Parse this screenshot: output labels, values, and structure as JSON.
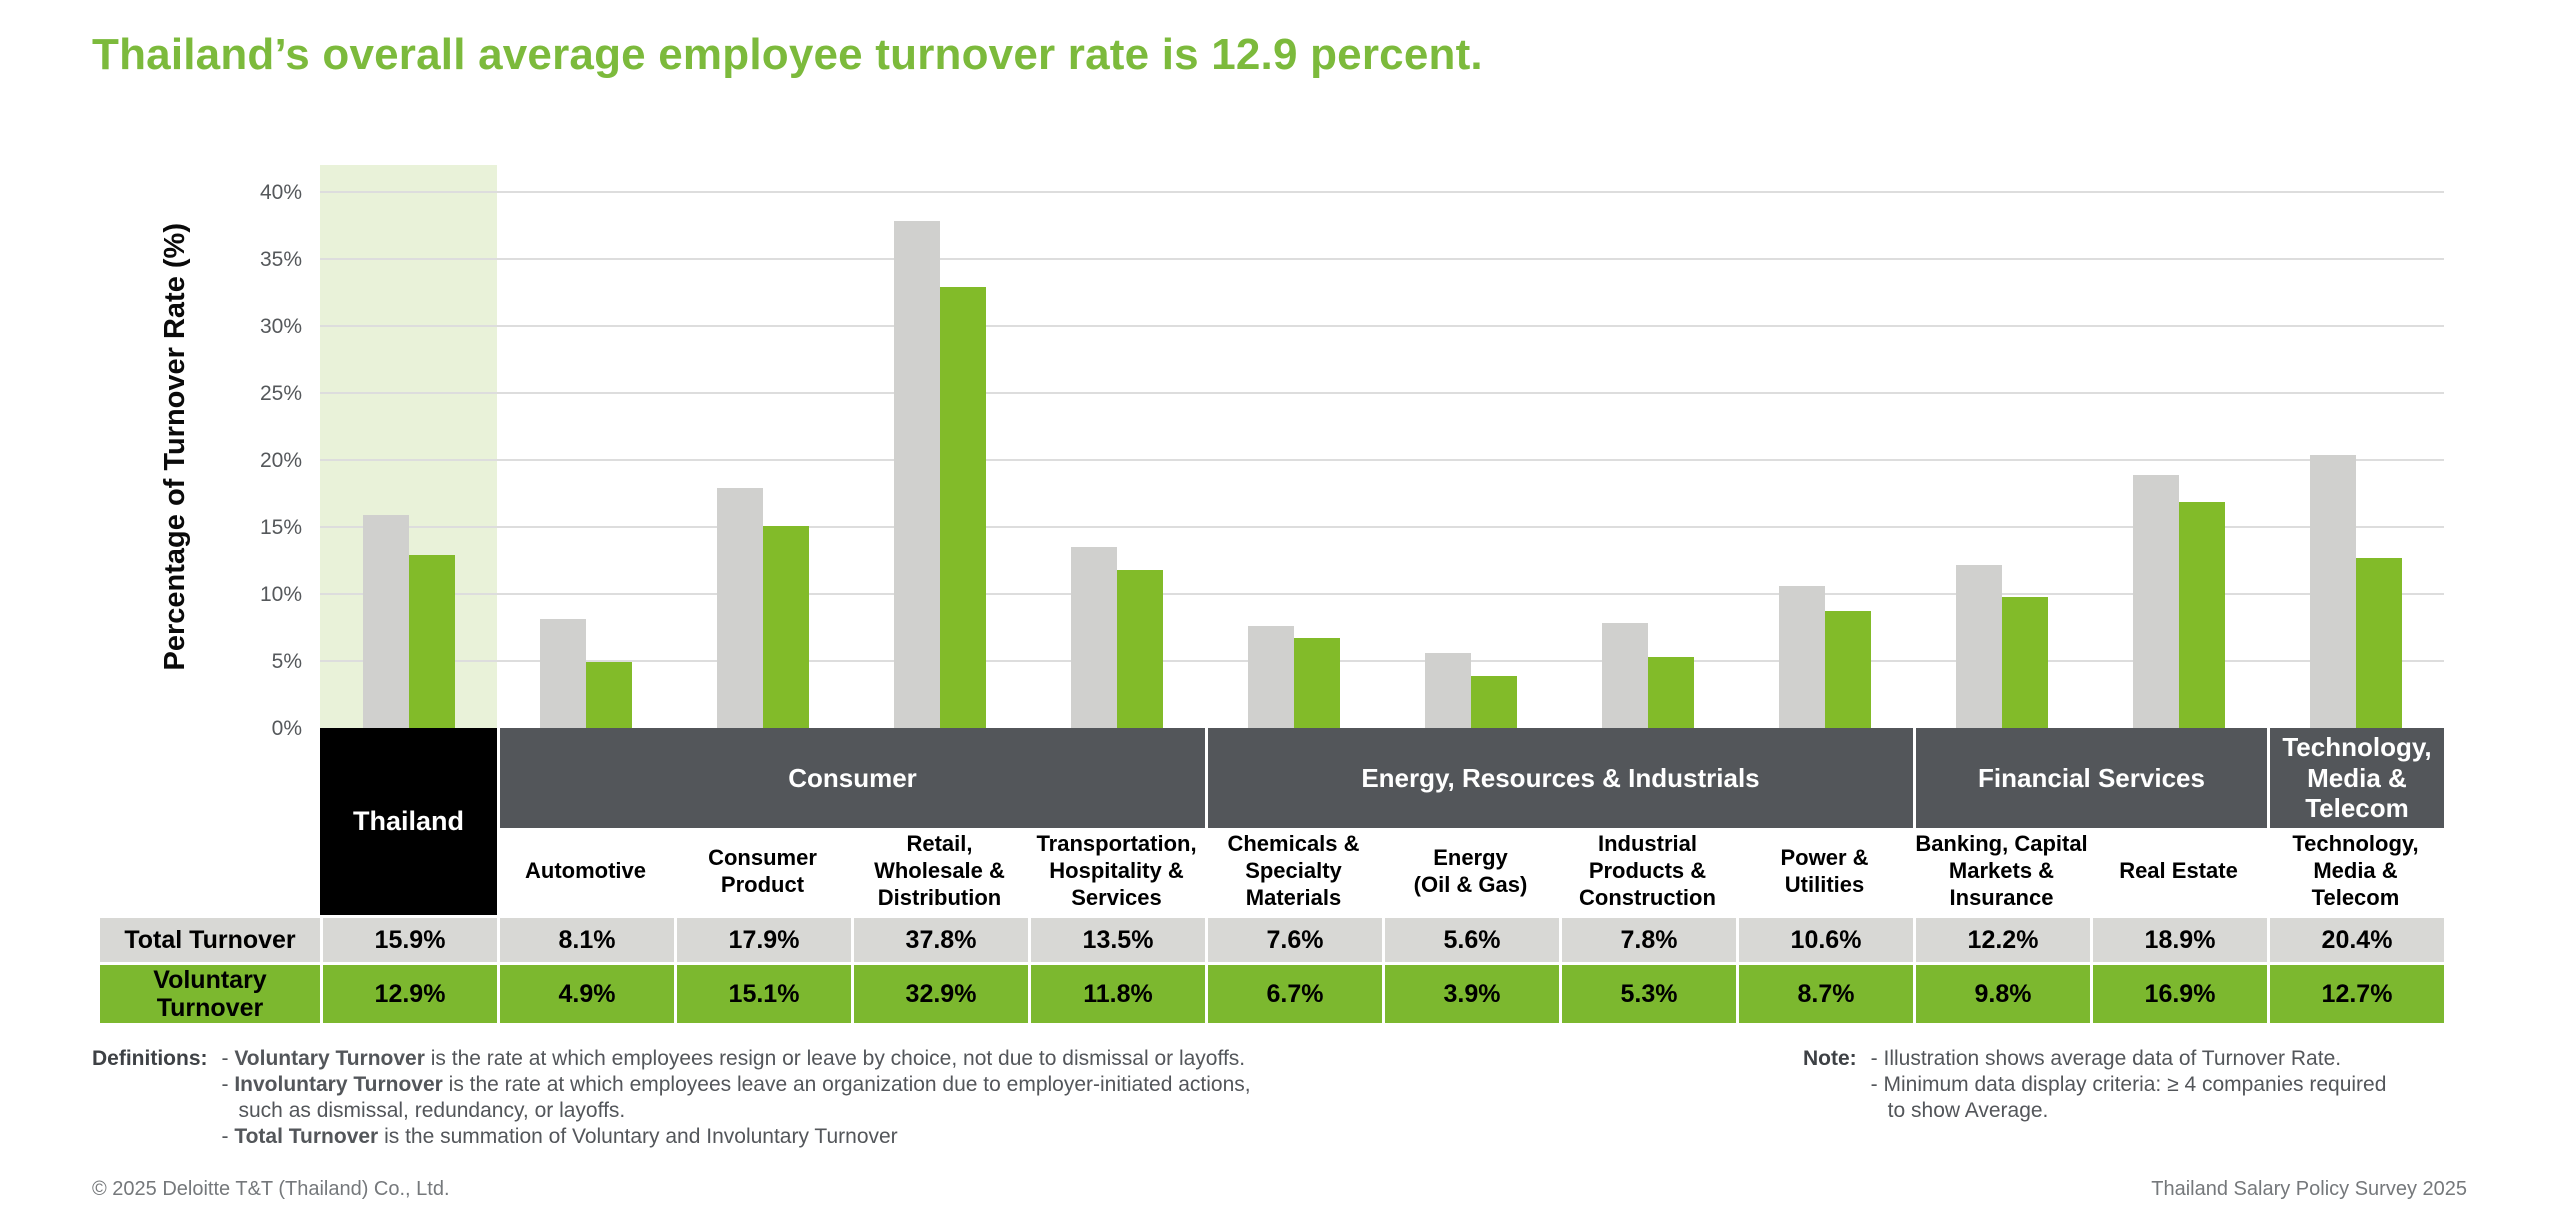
{
  "title": "Thailand’s overall average employee turnover rate is 12.9 percent.",
  "colors": {
    "title-green": "#7CBA3C",
    "bar-green": "#82BB29",
    "bar-gray": "#D0D0CE",
    "row-green": "#7CB82F",
    "row-gray": "#D8D8D5",
    "highlight-green": "#E9F2D9",
    "band-dark": "#53565A",
    "thailand-black": "#000000",
    "grid-gray": "#DDDDDD",
    "text-gray": "#53565A",
    "footer-gray": "#75787B"
  },
  "chart_data": {
    "type": "bar",
    "title": "Thailand’s overall average employee turnover rate is 12.9 percent.",
    "ylabel": "Percentage of Turnover Rate (%)",
    "ylim": [
      0,
      42
    ],
    "ytick_step": 5,
    "ytick_labels": [
      "0%",
      "5%",
      "10%",
      "15%",
      "20%",
      "25%",
      "30%",
      "35%",
      "40%"
    ],
    "grid": true,
    "legend_position": "table-below",
    "highlight_category": "Thailand",
    "sector_groups": [
      {
        "label": "Thailand",
        "span": 1,
        "black": true
      },
      {
        "label": "Consumer",
        "span": 4
      },
      {
        "label": "Energy, Resources & Industrials",
        "span": 4
      },
      {
        "label": "Financial Services",
        "span": 2
      },
      {
        "label": "Technology,\nMedia &\nTelecom",
        "span": 1
      }
    ],
    "categories": [
      "Thailand",
      "Automotive",
      "Consumer Product",
      "Retail, Wholesale & Distribution",
      "Transportation, Hospitality & Services",
      "Chemicals & Specialty Materials",
      "Energy (Oil & Gas)",
      "Industrial Products & Construction",
      "Power & Utilities",
      "Banking, Capital Markets & Insurance",
      "Real Estate",
      "Technology, Media & Telecom"
    ],
    "category_header_cells": [
      "",
      "Automotive",
      "Consumer\nProduct",
      "Retail,\nWholesale &\nDistribution",
      "Transportation,\nHospitality &\nServices",
      "Chemicals &\nSpecialty\nMaterials",
      "Energy\n(Oil & Gas)",
      "Industrial\nProducts &\nConstruction",
      "Power &\nUtilities",
      "Banking, Capital\nMarkets &\nInsurance",
      "Real Estate",
      "Technology,\nMedia &\nTelecom"
    ],
    "series": [
      {
        "name": "Total Turnover",
        "color": "#D0D0CE",
        "values": [
          15.9,
          8.1,
          17.9,
          37.8,
          13.5,
          7.6,
          5.6,
          7.8,
          10.6,
          12.2,
          18.9,
          20.4
        ]
      },
      {
        "name": "Voluntary Turnover",
        "color": "#82BB29",
        "values": [
          12.9,
          4.9,
          15.1,
          32.9,
          11.8,
          6.7,
          3.9,
          5.3,
          8.7,
          9.8,
          16.9,
          12.7
        ]
      }
    ],
    "value_suffix": "%"
  },
  "definitions": {
    "label": "Definitions:",
    "bullet_prefix": "- ",
    "items": [
      {
        "bold": "Voluntary Turnover",
        "rest": " is the rate at which employees resign or leave by choice, not due to dismissal or layoffs."
      },
      {
        "bold": "Involuntary Turnover",
        "rest": " is the rate at which employees leave an organization due to employer-initiated actions, such as dismissal, redundancy, or layoffs."
      },
      {
        "bold": "Total Turnover",
        "rest": " is the summation of Voluntary and Involuntary Turnover"
      }
    ]
  },
  "note": {
    "label": "Note:",
    "bullet_prefix": "- ",
    "items": [
      "Illustration shows average data of Turnover Rate.",
      "Minimum data display criteria: ≥ 4 companies required to show Average."
    ]
  },
  "footer": {
    "left": "© 2025 Deloitte T&T (Thailand) Co., Ltd.",
    "right": "Thailand Salary Policy Survey 2025"
  }
}
